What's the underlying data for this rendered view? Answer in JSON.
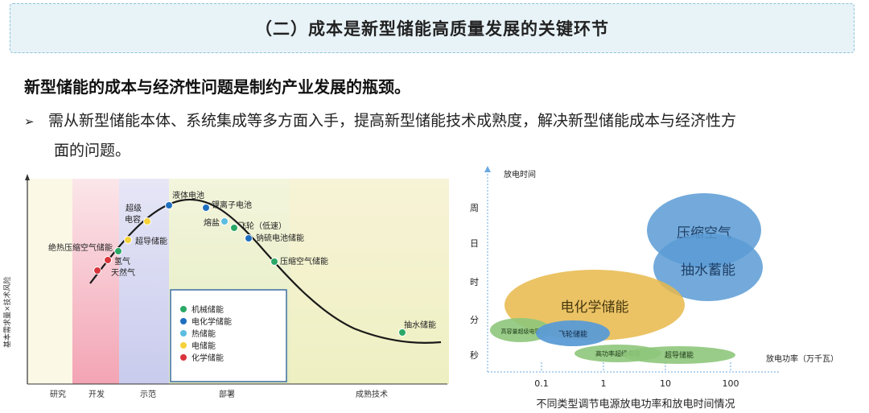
{
  "slide": {
    "title": "（二）成本是新型储能高质量发展的关键环节",
    "headline": "新型储能的成本与经济性问题是制约产业发展的瓶颈。",
    "bullet_arrow": "➢",
    "bullet_line1": "需从新型储能本体、系统集成等多方面入手，提高新型储能技术成熟度，解决新型储能成本与经济性方",
    "bullet_line2": "面的问题。"
  },
  "left_chart": {
    "ylabel": "基本需求量×技术风险",
    "phases": [
      "研究",
      "开发",
      "示范",
      "部署",
      "成熟技术"
    ],
    "points": [
      {
        "label": "绝热压缩空气储能",
        "color": "#2aa866"
      },
      {
        "label": "氢气",
        "color": "#d9343b"
      },
      {
        "label": "天然气",
        "color": "#d9343b"
      },
      {
        "label": "超级",
        "color": "#f5d23b"
      },
      {
        "label": "电容",
        "color": ""
      },
      {
        "label": "超导储能",
        "color": "#f5d23b"
      },
      {
        "label": "液体电池",
        "color": "#1f6fc0"
      },
      {
        "label": "锂离子电池",
        "color": "#1f6fc0"
      },
      {
        "label": "熔盐",
        "color": "#5bbde0"
      },
      {
        "label": "飞轮（低速）",
        "color": "#2aa866"
      },
      {
        "label": "钠硫电池储能",
        "color": "#1f6fc0"
      },
      {
        "label": "压缩空气储能",
        "color": "#2aa866"
      },
      {
        "label": "抽水储能",
        "color": "#2aa866"
      }
    ],
    "legend": [
      {
        "label": "机械储能",
        "color": "#2aa866"
      },
      {
        "label": "电化学储能",
        "color": "#1f6fc0"
      },
      {
        "label": "热储能",
        "color": "#5bbde0"
      },
      {
        "label": "电储能",
        "color": "#f5d23b"
      },
      {
        "label": "化学储能",
        "color": "#d9343b"
      }
    ]
  },
  "right_chart": {
    "ylabel": "放电时间",
    "xlabel": "放电功率（万千瓦）",
    "y_ticks": [
      "周",
      "日",
      "时",
      "分",
      "秒"
    ],
    "x_ticks": [
      "0.1",
      "1",
      "10",
      "100"
    ],
    "caption": "不同类型调节电源放电功率和放电时间情况",
    "bubbles": [
      {
        "label": "压缩空气",
        "color": "#5b9bd5"
      },
      {
        "label": "抽水蓄能",
        "color": "#5b9bd5"
      },
      {
        "label": "电化学储能",
        "color": "#e8b94a"
      },
      {
        "label": "高容量超级电容",
        "color": "#8ec77b"
      },
      {
        "label": "飞轮储能",
        "color": "#5b9bd5"
      },
      {
        "label": "高功率超级电容",
        "color": "#8ec77b"
      },
      {
        "label": "超导储能",
        "color": "#8ec77b"
      }
    ]
  }
}
